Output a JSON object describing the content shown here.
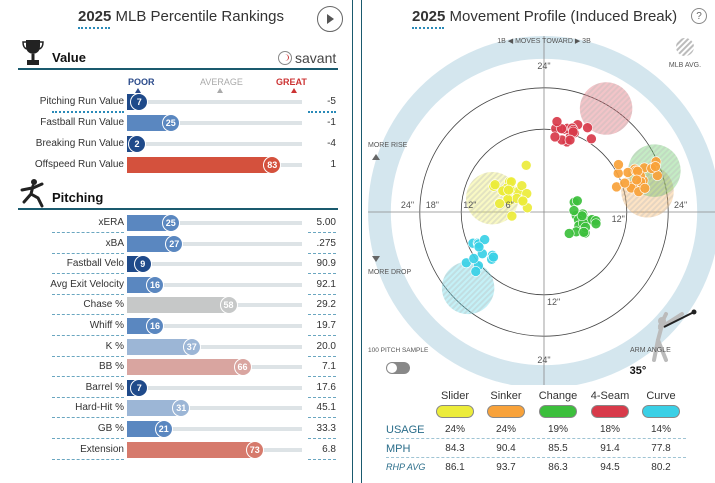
{
  "left_panel": {
    "title_year": "2025",
    "title_rest": " MLB Percentile Rankings",
    "sections": {
      "value": "Value",
      "pitching": "Pitching"
    },
    "savant": "savant",
    "scale": {
      "poor": "POOR",
      "average": "AVERAGE",
      "great": "GREAT"
    }
  },
  "right_panel": {
    "title_year": "2025",
    "title_rest": " Movement Profile (Induced Break)",
    "help": "?",
    "moves_toward": "1B ◀ MOVES TOWARD ▶ 3B",
    "mlb_avg": "MLB AVG.",
    "more_rise": "MORE RISE",
    "more_drop": "MORE DROP",
    "sample_label": "100 PITCH SAMPLE",
    "arm_angle_label": "ARM ANGLE",
    "arm_angle": "35°",
    "ring_labels": {
      "r24": "24\"",
      "r18": "18\"",
      "r12": "12\"",
      "r6": "6\""
    }
  },
  "colors": {
    "blue_dark": "#1f4a8a",
    "blue_mid": "#5a87c0",
    "blue_light": "#9cb6d6",
    "grey": "#c6c8c8",
    "red_light": "#d9a5a0",
    "red_mid": "#d67a6c",
    "red_dark": "#d4513d",
    "slider": "#ecec3a",
    "sinker": "#f8a23a",
    "change": "#3cbf3c",
    "fourseam": "#d83a4a",
    "curve": "#3ad0e6"
  },
  "chart_data": [
    {
      "type": "bar",
      "title": "2025 MLB Percentile Rankings",
      "xlim": [
        0,
        100
      ],
      "groups": [
        {
          "name": "Value",
          "rows": [
            {
              "label": "Pitching Run Value",
              "percentile": 7,
              "value": "-5"
            },
            {
              "label": "Fastball Run Value",
              "percentile": 25,
              "value": "-1"
            },
            {
              "label": "Breaking Run Value",
              "percentile": 2,
              "value": "-4"
            },
            {
              "label": "Offspeed Run Value",
              "percentile": 83,
              "value": "1"
            }
          ]
        },
        {
          "name": "Pitching",
          "rows": [
            {
              "label": "xERA",
              "percentile": 25,
              "value": "5.00"
            },
            {
              "label": "xBA",
              "percentile": 27,
              "value": ".275"
            },
            {
              "label": "Fastball Velo",
              "percentile": 9,
              "value": "90.9"
            },
            {
              "label": "Avg Exit Velocity",
              "percentile": 16,
              "value": "92.1"
            },
            {
              "label": "Chase %",
              "percentile": 58,
              "value": "29.2"
            },
            {
              "label": "Whiff %",
              "percentile": 16,
              "value": "19.7"
            },
            {
              "label": "K %",
              "percentile": 37,
              "value": "20.0"
            },
            {
              "label": "BB %",
              "percentile": 66,
              "value": "7.1"
            },
            {
              "label": "Barrel %",
              "percentile": 7,
              "value": "17.6"
            },
            {
              "label": "Hard-Hit %",
              "percentile": 31,
              "value": "45.1"
            },
            {
              "label": "GB %",
              "percentile": 21,
              "value": "33.3"
            },
            {
              "label": "Extension",
              "percentile": 73,
              "value": "6.8"
            }
          ]
        }
      ]
    },
    {
      "type": "scatter",
      "title": "2025 Movement Profile (Induced Break)",
      "x_unit": "inches horizontal break",
      "y_unit": "inches induced vertical break",
      "xlim": [
        -24,
        24
      ],
      "ylim": [
        -24,
        24
      ],
      "series": [
        {
          "name": "Slider",
          "key": "slider",
          "center": [
            -4,
            3
          ],
          "spread": [
            3,
            2.5
          ],
          "n": 22,
          "avg": [
            -7.5,
            2
          ]
        },
        {
          "name": "Sinker",
          "key": "sinker",
          "center": [
            14,
            5
          ],
          "spread": [
            2.5,
            2
          ],
          "n": 22,
          "avg": [
            15,
            3
          ]
        },
        {
          "name": "Change",
          "key": "change",
          "center": [
            6,
            -1
          ],
          "spread": [
            2,
            2
          ],
          "n": 18,
          "avg": [
            16,
            6
          ]
        },
        {
          "name": "4-Seam",
          "key": "fourseam",
          "center": [
            4,
            12
          ],
          "spread": [
            2,
            2
          ],
          "n": 18,
          "avg": [
            9,
            15
          ]
        },
        {
          "name": "Curve",
          "key": "curve",
          "center": [
            -9,
            -6
          ],
          "spread": [
            2,
            2
          ],
          "n": 13,
          "avg": [
            -11,
            -11
          ]
        }
      ],
      "table": {
        "row_labels": [
          "USAGE",
          "MPH",
          "RHP AVG"
        ],
        "columns": [
          {
            "name": "Slider",
            "usage": "24%",
            "mph": "84.3",
            "rhp_avg": "86.1"
          },
          {
            "name": "Sinker",
            "usage": "24%",
            "mph": "90.4",
            "rhp_avg": "93.7"
          },
          {
            "name": "Change",
            "usage": "19%",
            "mph": "85.5",
            "rhp_avg": "86.3"
          },
          {
            "name": "4-Seam",
            "usage": "18%",
            "mph": "91.4",
            "rhp_avg": "94.5"
          },
          {
            "name": "Curve",
            "usage": "14%",
            "mph": "77.8",
            "rhp_avg": "80.2"
          }
        ]
      }
    }
  ]
}
